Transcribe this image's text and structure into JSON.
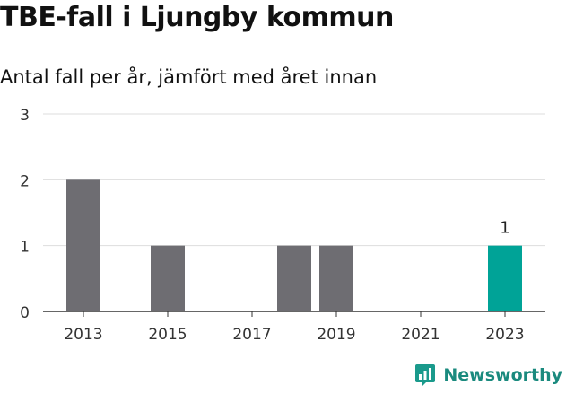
{
  "title": "TBE-fall i Ljungby kommun",
  "subtitle": "Antal fall per år, jämfört med året innan",
  "brand": {
    "name": "Newsworthy",
    "color": "#1a9a8c",
    "icon": "newsworthy-bar-chart-icon"
  },
  "colors": {
    "bar": "#6e6d72",
    "highlight": "#00a397",
    "grid": "#dddddd",
    "axis": "#333333"
  },
  "chart_data": {
    "type": "bar",
    "title": "TBE-fall i Ljungby kommun",
    "subtitle": "Antal fall per år, jämfört med året innan",
    "categories": [
      2013,
      2014,
      2015,
      2016,
      2017,
      2018,
      2019,
      2020,
      2021,
      2022,
      2023
    ],
    "values": [
      2,
      0,
      1,
      0,
      0,
      1,
      1,
      0,
      0,
      0,
      1
    ],
    "x_ticks": [
      "2013",
      "2015",
      "2017",
      "2019",
      "2021",
      "2023"
    ],
    "y_ticks": [
      "0",
      "1",
      "2",
      "3"
    ],
    "ylim": [
      0,
      3
    ],
    "highlight_category": 2023,
    "data_labels": [
      {
        "category": 2023,
        "text": "1"
      }
    ],
    "xlabel": "",
    "ylabel": "",
    "grid": true,
    "legend": "none"
  }
}
